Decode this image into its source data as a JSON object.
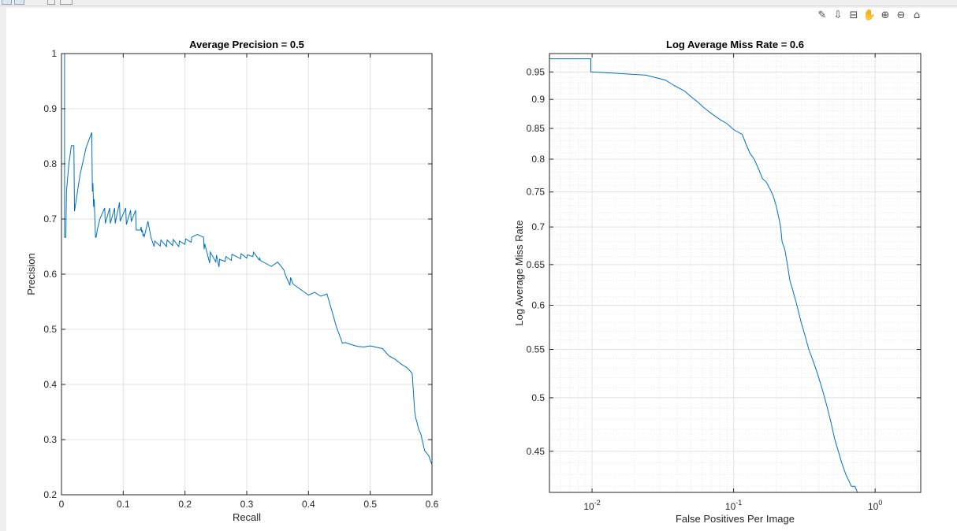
{
  "toolbar": {
    "buttons": [
      "save-icon",
      "open-icon",
      "data-cursor-icon",
      "insert-legend-icon"
    ]
  },
  "axes_toolbar": {
    "buttons": [
      {
        "name": "brush-icon",
        "glyph": "✎"
      },
      {
        "name": "export-icon",
        "glyph": "⇩"
      },
      {
        "name": "datatip-icon",
        "glyph": "⊟"
      },
      {
        "name": "pan-icon",
        "glyph": "✋"
      },
      {
        "name": "zoom-in-icon",
        "glyph": "⊕"
      },
      {
        "name": "zoom-out-icon",
        "glyph": "⊖"
      },
      {
        "name": "home-icon",
        "glyph": "⌂"
      }
    ]
  },
  "colors": {
    "series": "#0072bd",
    "axis": "#262626",
    "grid": "#e3e3e3",
    "background": "#ffffff"
  },
  "chart_data": [
    {
      "type": "line",
      "title": "Average Precision = 0.5",
      "xlabel": "Recall",
      "ylabel": "Precision",
      "xlim": [
        0,
        0.6
      ],
      "ylim": [
        0.2,
        1
      ],
      "xticks": [
        0,
        0.1,
        0.2,
        0.3,
        0.4,
        0.5,
        0.6
      ],
      "xticklabels": [
        "0",
        "0.1",
        "0.2",
        "0.3",
        "0.4",
        "0.5",
        "0.6"
      ],
      "yticks": [
        0.2,
        0.3,
        0.4,
        0.5,
        0.6,
        0.7,
        0.8,
        0.9,
        1
      ],
      "yticklabels": [
        "0.2",
        "0.3",
        "0.4",
        "0.5",
        "0.6",
        "0.7",
        "0.8",
        "0.9",
        "1"
      ],
      "grid": true,
      "x": [
        0,
        0.005,
        0.005,
        0.007,
        0.008,
        0.012,
        0.016,
        0.02,
        0.021,
        0.03,
        0.04,
        0.049,
        0.05,
        0.051,
        0.052,
        0.053,
        0.055,
        0.056,
        0.058,
        0.062,
        0.07,
        0.071,
        0.078,
        0.079,
        0.086,
        0.087,
        0.094,
        0.095,
        0.104,
        0.105,
        0.112,
        0.113,
        0.12,
        0.121,
        0.128,
        0.129,
        0.13,
        0.131,
        0.132,
        0.133,
        0.134,
        0.14,
        0.145,
        0.15,
        0.151,
        0.16,
        0.161,
        0.17,
        0.171,
        0.18,
        0.181,
        0.19,
        0.191,
        0.2,
        0.201,
        0.21,
        0.211,
        0.22,
        0.23,
        0.231,
        0.232,
        0.24,
        0.241,
        0.25,
        0.251,
        0.255,
        0.256,
        0.265,
        0.266,
        0.275,
        0.276,
        0.29,
        0.291,
        0.3,
        0.301,
        0.31,
        0.311,
        0.32,
        0.321,
        0.322,
        0.33,
        0.34,
        0.35,
        0.36,
        0.362,
        0.366,
        0.37,
        0.371,
        0.375,
        0.38,
        0.39,
        0.4,
        0.41,
        0.42,
        0.43,
        0.44,
        0.445,
        0.45,
        0.455,
        0.46,
        0.47,
        0.48,
        0.49,
        0.5,
        0.52,
        0.53,
        0.54,
        0.55,
        0.56,
        0.568,
        0.572,
        0.574,
        0.576,
        0.578,
        0.582,
        0.585,
        0.588,
        0.592,
        0.595,
        0.598,
        0.6
      ],
      "y": [
        1,
        1,
        0.667,
        0.667,
        0.75,
        0.8,
        0.833,
        0.833,
        0.714,
        0.78,
        0.83,
        0.857,
        0.75,
        0.765,
        0.722,
        0.736,
        0.667,
        0.667,
        0.68,
        0.7,
        0.72,
        0.692,
        0.72,
        0.692,
        0.72,
        0.692,
        0.73,
        0.696,
        0.72,
        0.69,
        0.716,
        0.695,
        0.716,
        0.68,
        0.68,
        0.686,
        0.676,
        0.68,
        0.67,
        0.672,
        0.668,
        0.696,
        0.666,
        0.65,
        0.66,
        0.651,
        0.662,
        0.65,
        0.662,
        0.652,
        0.663,
        0.65,
        0.66,
        0.654,
        0.664,
        0.658,
        0.667,
        0.672,
        0.667,
        0.645,
        0.655,
        0.62,
        0.64,
        0.622,
        0.635,
        0.613,
        0.627,
        0.623,
        0.632,
        0.625,
        0.636,
        0.628,
        0.637,
        0.629,
        0.635,
        0.632,
        0.64,
        0.626,
        0.629,
        0.625,
        0.62,
        0.614,
        0.622,
        0.608,
        0.6,
        0.59,
        0.58,
        0.594,
        0.582,
        0.578,
        0.57,
        0.562,
        0.567,
        0.56,
        0.564,
        0.525,
        0.505,
        0.49,
        0.475,
        0.476,
        0.472,
        0.469,
        0.468,
        0.47,
        0.465,
        0.452,
        0.446,
        0.437,
        0.43,
        0.42,
        0.35,
        0.338,
        0.33,
        0.32,
        0.31,
        0.295,
        0.28,
        0.275,
        0.27,
        0.26,
        0.255
      ]
    },
    {
      "type": "line",
      "title": "Log Average Miss Rate = 0.6",
      "xlabel": "False Positives Per Image",
      "ylabel": "Log Average Miss Rate",
      "xscale": "log",
      "yscale": "log",
      "xlim": [
        0.005,
        2.1
      ],
      "ylim": [
        0.415,
        0.985
      ],
      "xticks": [
        0.01,
        0.1,
        1
      ],
      "xticklabels": [
        "10^-2",
        "10^-1",
        "10^0"
      ],
      "yticks": [
        0.45,
        0.5,
        0.55,
        0.6,
        0.65,
        0.7,
        0.75,
        0.8,
        0.85,
        0.9,
        0.95
      ],
      "yticklabels": [
        "0.45",
        "0.5",
        "0.55",
        "0.6",
        "0.65",
        "0.7",
        "0.75",
        "0.8",
        "0.85",
        "0.9",
        "0.95"
      ],
      "grid": true,
      "minor_grid": true,
      "x": [
        0.005,
        0.0098,
        0.0098,
        0.014,
        0.018,
        0.024,
        0.033,
        0.038,
        0.045,
        0.05,
        0.056,
        0.062,
        0.07,
        0.08,
        0.09,
        0.1,
        0.115,
        0.122,
        0.13,
        0.14,
        0.15,
        0.16,
        0.17,
        0.18,
        0.19,
        0.2,
        0.21,
        0.215,
        0.22,
        0.23,
        0.24,
        0.25,
        0.26,
        0.27,
        0.28,
        0.3,
        0.32,
        0.34,
        0.36,
        0.38,
        0.4,
        0.42,
        0.44,
        0.46,
        0.48,
        0.5,
        0.52,
        0.55,
        0.58,
        0.6,
        0.62,
        0.65,
        0.68,
        0.7,
        0.72,
        0.75,
        0.78,
        0.8,
        0.83,
        0.86,
        0.9,
        0.93,
        0.98,
        1.05,
        1.2,
        1.4,
        1.55,
        1.75,
        1.95,
        2.1
      ],
      "y": [
        0.975,
        0.975,
        0.95,
        0.948,
        0.946,
        0.944,
        0.935,
        0.925,
        0.915,
        0.905,
        0.895,
        0.885,
        0.875,
        0.865,
        0.858,
        0.848,
        0.84,
        0.825,
        0.81,
        0.8,
        0.785,
        0.77,
        0.765,
        0.755,
        0.745,
        0.73,
        0.71,
        0.7,
        0.68,
        0.67,
        0.65,
        0.63,
        0.62,
        0.61,
        0.6,
        0.58,
        0.565,
        0.55,
        0.54,
        0.53,
        0.52,
        0.51,
        0.5,
        0.49,
        0.48,
        0.47,
        0.46,
        0.45,
        0.44,
        0.435,
        0.43,
        0.425,
        0.42,
        0.42,
        0.42,
        0.415,
        0.412,
        0.41,
        0.405,
        0.4,
        0.4,
        0.4,
        0.4,
        0.4,
        0.4,
        0.4,
        0.4,
        0.4,
        0.4,
        0.4
      ]
    }
  ]
}
